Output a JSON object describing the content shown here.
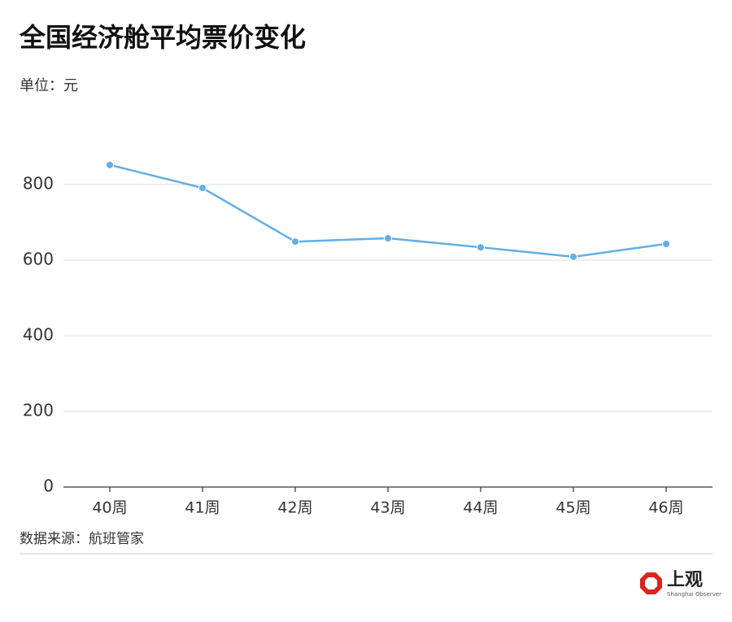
{
  "chart_data": {
    "type": "line",
    "title": "全国经济舱平均票价变化",
    "subtitle": "单位：元",
    "categories": [
      "40周",
      "41周",
      "42周",
      "43周",
      "44周",
      "45周",
      "46周"
    ],
    "series": [
      {
        "name": "平均票价",
        "color": "#62aee6",
        "values": [
          852,
          791,
          649,
          658,
          634,
          609,
          643
        ]
      }
    ],
    "ylim": [
      0,
      1000
    ],
    "yticks": [
      0,
      200,
      400,
      600,
      800
    ],
    "grid": true,
    "source": "数据来源：航班管家"
  },
  "brand": {
    "name": "上观",
    "tagline": "Shanghai Observer"
  }
}
